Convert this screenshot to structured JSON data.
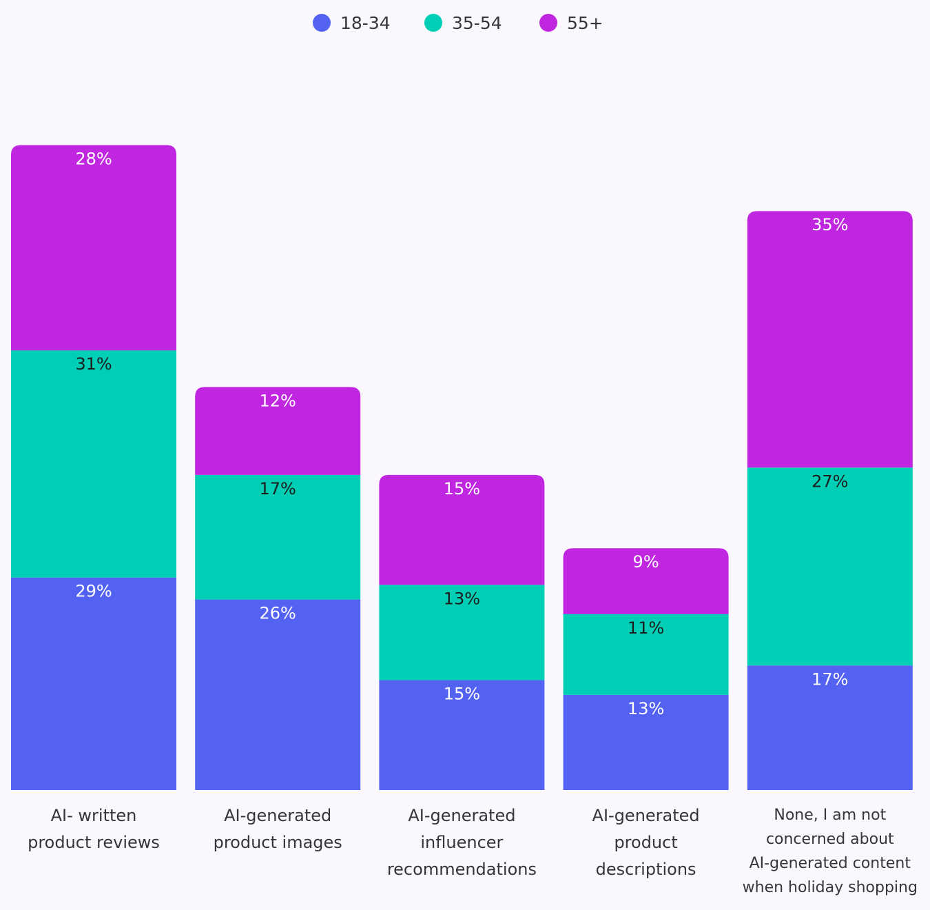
{
  "chart_data": {
    "type": "bar",
    "stacked": true,
    "categories": [
      [
        "AI- written",
        "product reviews"
      ],
      [
        "AI-generated",
        "product images"
      ],
      [
        "AI-generated",
        "influencer",
        "recommendations"
      ],
      [
        "AI-generated",
        "product",
        "descriptions"
      ],
      [
        "None, I am not",
        "concerned about",
        "AI-generated content",
        "when holiday shopping"
      ]
    ],
    "series": [
      {
        "name": "18-34",
        "color": "#5462f2",
        "label_color": "#ffffff",
        "values": [
          29,
          26,
          15,
          13,
          17
        ],
        "labels": [
          "29%",
          "26%",
          "15%",
          "13%",
          "17%"
        ]
      },
      {
        "name": "35-54",
        "color": "#00cfb5",
        "label_color": "#1c1c1c",
        "values": [
          31,
          17,
          13,
          11,
          27
        ],
        "labels": [
          "31%",
          "17%",
          "13%",
          "11%",
          "27%"
        ]
      },
      {
        "name": "55+",
        "color": "#c026e0",
        "label_color": "#ffffff",
        "values": [
          28,
          12,
          15,
          9,
          35
        ],
        "labels": [
          "28%",
          "12%",
          "15%",
          "9%",
          "35%"
        ]
      }
    ],
    "legend_position": "top-center",
    "grid": false,
    "xlabel": "",
    "ylabel": ""
  }
}
